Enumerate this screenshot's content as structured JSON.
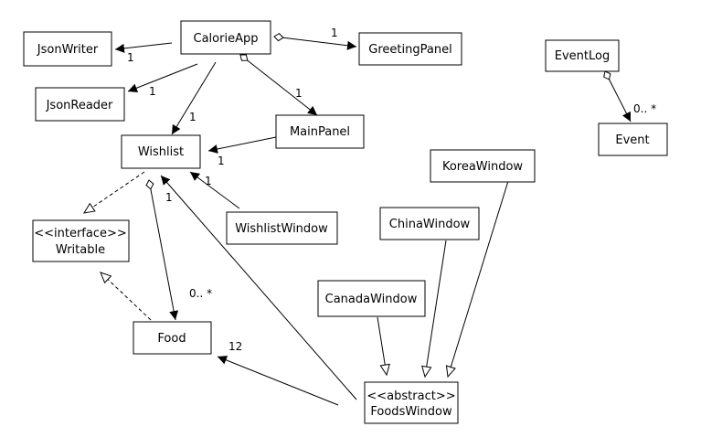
{
  "classes": {
    "calorie_app": "CalorieApp",
    "json_writer": "JsonWriter",
    "json_reader": "JsonReader",
    "greeting_panel": "GreetingPanel",
    "event_log": "EventLog",
    "event": "Event",
    "wishlist": "Wishlist",
    "main_panel": "MainPanel",
    "wishlist_window": "WishlistWindow",
    "writable_stereotype": "<<interface>>",
    "writable": "Writable",
    "korea_window": "KoreaWindow",
    "china_window": "ChinaWindow",
    "canada_window": "CanadaWindow",
    "food": "Food",
    "foods_window_stereotype": "<<abstract>>",
    "foods_window": "FoodsWindow"
  },
  "multiplicities": {
    "app_writer": "1",
    "app_greeting": "1",
    "app_reader": "1",
    "app_wishlist": "1",
    "app_mainpanel": "1",
    "eventlog_event": "0.. *",
    "mainpanel_wishlist": "1",
    "wishlistwindow_wishlist": "1",
    "foodswindow_wishlist": "1",
    "wishlist_food": "0.. *",
    "foodswindow_food": "12"
  }
}
